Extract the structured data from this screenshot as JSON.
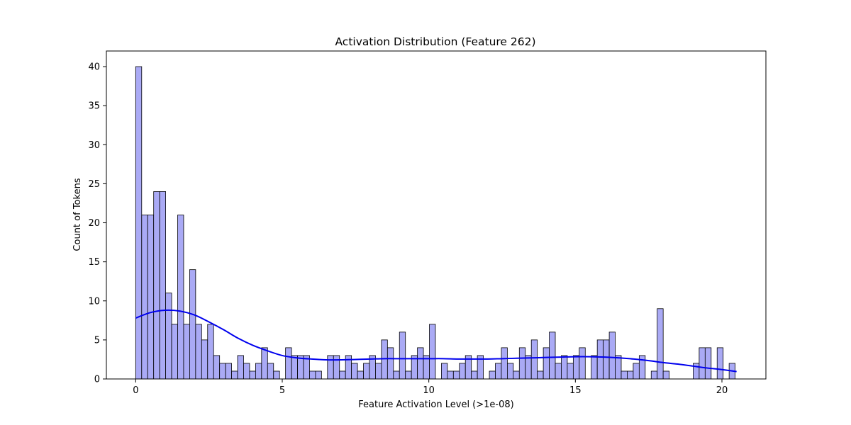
{
  "chart_data": {
    "type": "bar",
    "title": "Activation Distribution (Feature 262)",
    "xlabel": "Feature Activation Level (>1e-08)",
    "ylabel": "Count of Tokens",
    "xlim": [
      -1.0,
      21.5
    ],
    "ylim": [
      0,
      42
    ],
    "grid": false,
    "legend": "none",
    "bin_start": 0.0,
    "bin_width": 0.2045,
    "x_ticks": [
      {
        "value": 0,
        "label": "0"
      },
      {
        "value": 5,
        "label": "5"
      },
      {
        "value": 10,
        "label": "10"
      },
      {
        "value": 15,
        "label": "15"
      },
      {
        "value": 20,
        "label": "20"
      }
    ],
    "y_ticks": [
      {
        "value": 0,
        "label": "0"
      },
      {
        "value": 5,
        "label": "5"
      },
      {
        "value": 10,
        "label": "10"
      },
      {
        "value": 15,
        "label": "15"
      },
      {
        "value": 20,
        "label": "20"
      },
      {
        "value": 25,
        "label": "25"
      },
      {
        "value": 30,
        "label": "30"
      },
      {
        "value": 35,
        "label": "35"
      },
      {
        "value": 40,
        "label": "40"
      }
    ],
    "counts": [
      40,
      21,
      21,
      24,
      24,
      11,
      7,
      21,
      7,
      14,
      7,
      5,
      7,
      3,
      2,
      2,
      1,
      3,
      2,
      1,
      2,
      4,
      2,
      1,
      0,
      4,
      3,
      3,
      3,
      1,
      1,
      0,
      3,
      3,
      1,
      3,
      2,
      1,
      2,
      3,
      2,
      5,
      4,
      1,
      6,
      1,
      3,
      4,
      3,
      7,
      0,
      2,
      1,
      1,
      2,
      3,
      1,
      3,
      0,
      1,
      2,
      4,
      2,
      1,
      4,
      3,
      5,
      1,
      4,
      6,
      2,
      3,
      2,
      3,
      4,
      0,
      3,
      5,
      5,
      6,
      3,
      1,
      1,
      2,
      3,
      0,
      1,
      9,
      1,
      0,
      0,
      0,
      0,
      2,
      4,
      4,
      0,
      4,
      0,
      2
    ],
    "kde": {
      "name": "kde",
      "x": [
        0.0,
        0.5,
        1.0,
        1.5,
        2.0,
        2.5,
        3.0,
        3.5,
        4.0,
        4.5,
        5.0,
        5.5,
        6.0,
        6.5,
        7.0,
        7.5,
        8.0,
        8.5,
        9.0,
        9.5,
        10.0,
        10.5,
        11.0,
        11.5,
        12.0,
        12.5,
        13.0,
        13.5,
        14.0,
        14.5,
        15.0,
        15.5,
        16.0,
        16.5,
        17.0,
        17.5,
        18.0,
        18.5,
        19.0,
        19.5,
        20.0,
        20.5
      ],
      "y": [
        7.8,
        8.5,
        8.8,
        8.7,
        8.2,
        7.3,
        6.3,
        5.2,
        4.3,
        3.6,
        3.0,
        2.7,
        2.55,
        2.45,
        2.45,
        2.5,
        2.55,
        2.6,
        2.6,
        2.6,
        2.6,
        2.6,
        2.55,
        2.55,
        2.55,
        2.6,
        2.65,
        2.7,
        2.75,
        2.8,
        2.85,
        2.85,
        2.8,
        2.7,
        2.55,
        2.35,
        2.1,
        1.9,
        1.65,
        1.4,
        1.2,
        0.95
      ]
    },
    "colors": {
      "bar_fill": "#aaaaf5",
      "bar_edge": "#000000",
      "kde_line": "#0000ee"
    }
  }
}
